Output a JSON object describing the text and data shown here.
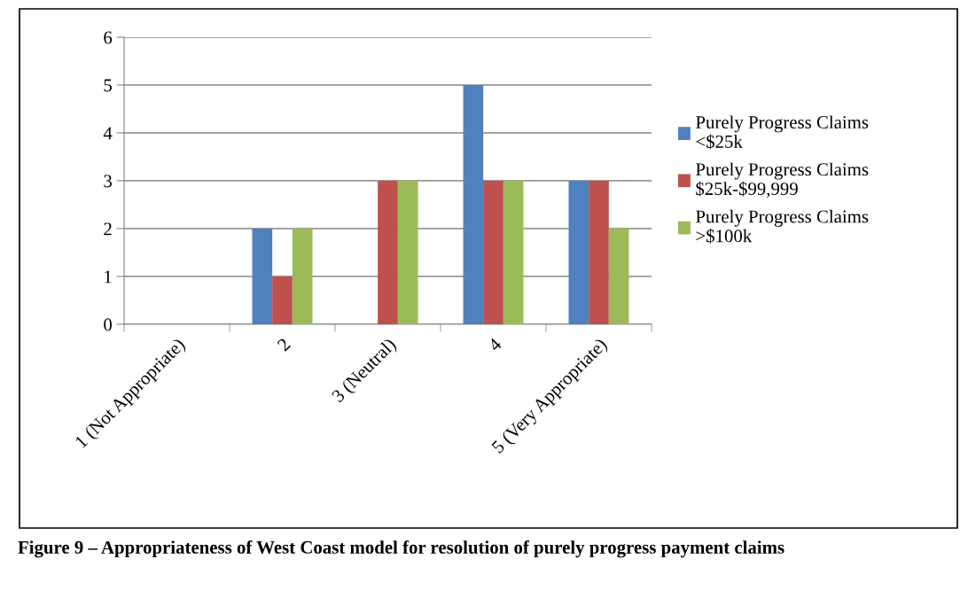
{
  "chart_data": {
    "type": "bar",
    "title": "Figure 9 – Appropriateness of West Coast model for resolution of purely progress payment claims",
    "categories": [
      "1 (Not Appropriate)",
      "2",
      "3 (Neutral)",
      "4",
      "5 (Very Appropriate)"
    ],
    "series": [
      {
        "name": "Purely Progress Claims <$25k",
        "color": "#4f81bd",
        "values": [
          0,
          2,
          0,
          5,
          3
        ]
      },
      {
        "name": "Purely Progress Claims $25k-$99,999",
        "color": "#c0504d",
        "values": [
          0,
          1,
          3,
          3,
          3
        ]
      },
      {
        "name": "Purely Progress Claims >$100k",
        "color": "#9bbb59",
        "values": [
          0,
          2,
          3,
          3,
          2
        ]
      }
    ],
    "ylim": [
      0,
      6
    ],
    "yticks": [
      0,
      1,
      2,
      3,
      4,
      5,
      6
    ],
    "grid": "y",
    "legend": "right"
  }
}
